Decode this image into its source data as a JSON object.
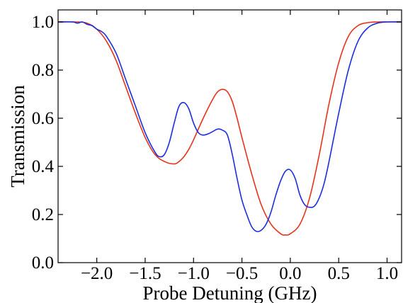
{
  "chart_data": {
    "type": "line",
    "xlabel": "Probe Detuning (GHz)",
    "ylabel": "Transmission",
    "xlim": [
      -2.4,
      1.15
    ],
    "ylim": [
      0.0,
      1.05
    ],
    "xticks": [
      -2.0,
      -1.5,
      -1.0,
      -0.5,
      0.0,
      0.5,
      1.0
    ],
    "xtick_labels": [
      "−2.0",
      "−1.5",
      "−1.0",
      "−0.5",
      "0.0",
      "0.5",
      "1.0"
    ],
    "yticks": [
      0.0,
      0.2,
      0.4,
      0.6,
      0.8,
      1.0
    ],
    "ytick_labels": [
      "0.0",
      "0.2",
      "0.4",
      "0.6",
      "0.8",
      "1.0"
    ],
    "grid": false,
    "series": [
      {
        "color": "#e8321a",
        "x": [
          -2.4,
          -2.2,
          -2.1,
          -2.0,
          -1.9,
          -1.8,
          -1.7,
          -1.6,
          -1.5,
          -1.4,
          -1.3,
          -1.2,
          -1.15,
          -1.1,
          -1.05,
          -1.0,
          -0.9,
          -0.8,
          -0.75,
          -0.7,
          -0.65,
          -0.6,
          -0.55,
          -0.5,
          -0.4,
          -0.3,
          -0.2,
          -0.1,
          -0.05,
          0.0,
          0.1,
          0.2,
          0.3,
          0.4,
          0.5,
          0.6,
          0.7,
          0.8,
          0.9,
          1.0,
          1.15
        ],
        "y": [
          1.0,
          1.0,
          0.995,
          0.97,
          0.92,
          0.84,
          0.73,
          0.62,
          0.52,
          0.45,
          0.42,
          0.41,
          0.42,
          0.44,
          0.47,
          0.51,
          0.6,
          0.68,
          0.71,
          0.72,
          0.71,
          0.67,
          0.6,
          0.52,
          0.37,
          0.24,
          0.16,
          0.12,
          0.115,
          0.12,
          0.16,
          0.27,
          0.45,
          0.66,
          0.83,
          0.94,
          0.985,
          0.997,
          1.0,
          1.0,
          1.0
        ]
      },
      {
        "color": "#1a2ee0",
        "x": [
          -2.4,
          -2.25,
          -2.2,
          -2.15,
          -2.1,
          -2.05,
          -2.0,
          -1.95,
          -1.9,
          -1.8,
          -1.7,
          -1.6,
          -1.5,
          -1.4,
          -1.35,
          -1.3,
          -1.25,
          -1.2,
          -1.15,
          -1.1,
          -1.05,
          -1.0,
          -0.95,
          -0.9,
          -0.85,
          -0.8,
          -0.75,
          -0.7,
          -0.65,
          -0.6,
          -0.55,
          -0.5,
          -0.45,
          -0.4,
          -0.35,
          -0.3,
          -0.25,
          -0.2,
          -0.15,
          -0.1,
          -0.05,
          0.0,
          0.05,
          0.1,
          0.15,
          0.2,
          0.25,
          0.3,
          0.35,
          0.4,
          0.5,
          0.6,
          0.7,
          0.8,
          0.9,
          1.0,
          1.15
        ],
        "y": [
          1.0,
          1.0,
          0.995,
          1.0,
          0.99,
          0.985,
          0.97,
          0.96,
          0.94,
          0.87,
          0.76,
          0.65,
          0.54,
          0.46,
          0.44,
          0.45,
          0.5,
          0.58,
          0.65,
          0.665,
          0.64,
          0.58,
          0.54,
          0.53,
          0.535,
          0.545,
          0.555,
          0.55,
          0.53,
          0.45,
          0.35,
          0.26,
          0.2,
          0.15,
          0.13,
          0.135,
          0.16,
          0.21,
          0.28,
          0.34,
          0.38,
          0.385,
          0.35,
          0.28,
          0.24,
          0.23,
          0.235,
          0.27,
          0.33,
          0.42,
          0.62,
          0.8,
          0.92,
          0.975,
          0.995,
          1.0,
          1.0
        ]
      }
    ]
  }
}
